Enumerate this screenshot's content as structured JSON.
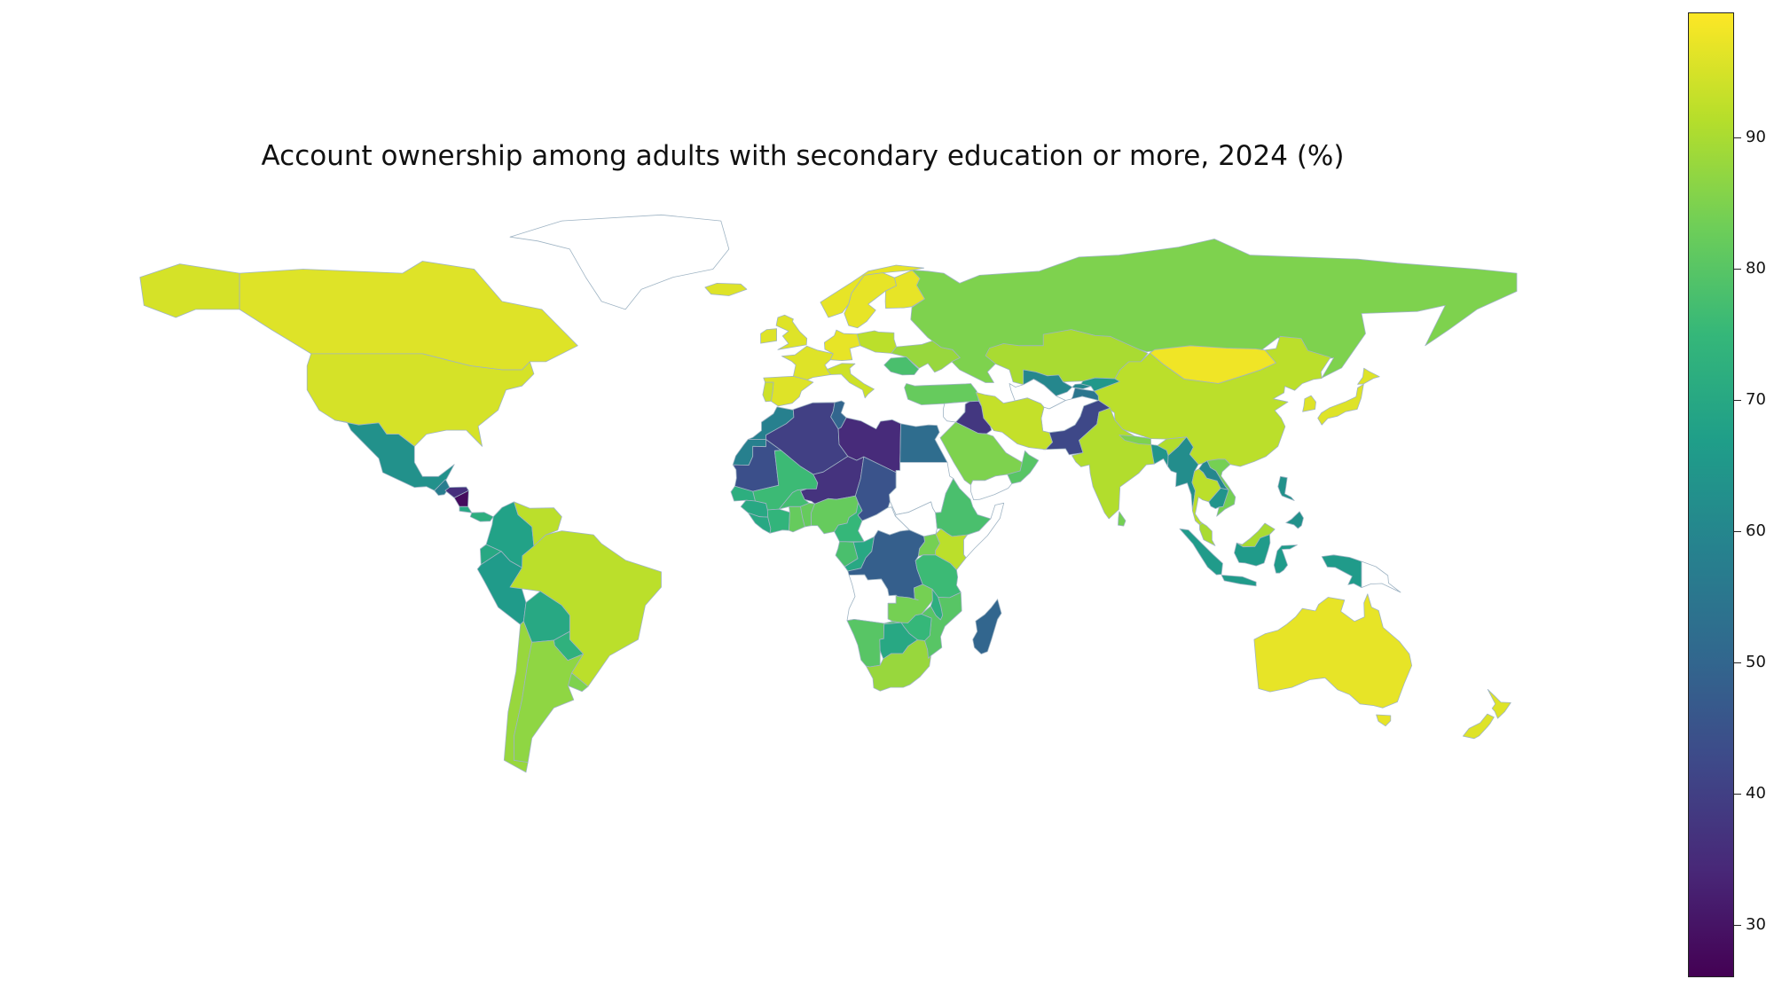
{
  "title": "Account ownership among adults with secondary education or more, 2024 (%)",
  "colorbar": {
    "min": 26,
    "max": 99.5,
    "ticks": [
      30,
      40,
      50,
      60,
      70,
      80,
      90
    ],
    "colors": [
      "#440154",
      "#482878",
      "#3e4989",
      "#31688e",
      "#26828e",
      "#1f9e89",
      "#35b779",
      "#6ece58",
      "#b5de2b",
      "#fde725"
    ]
  },
  "countries": [
    {
      "name": "Canada",
      "value": 96
    },
    {
      "name": "United States",
      "value": 95
    },
    {
      "name": "Greenland",
      "value": null
    },
    {
      "name": "Mexico",
      "value": 63
    },
    {
      "name": "Guatemala",
      "value": 57
    },
    {
      "name": "Honduras",
      "value": 36
    },
    {
      "name": "Nicaragua",
      "value": 28
    },
    {
      "name": "Costa Rica",
      "value": 70
    },
    {
      "name": "Panama",
      "value": 72
    },
    {
      "name": "Colombia",
      "value": 68
    },
    {
      "name": "Venezuela",
      "value": 92
    },
    {
      "name": "Ecuador",
      "value": 70
    },
    {
      "name": "Peru",
      "value": 66
    },
    {
      "name": "Brazil",
      "value": 92
    },
    {
      "name": "Bolivia",
      "value": 70
    },
    {
      "name": "Paraguay",
      "value": 73
    },
    {
      "name": "Chile",
      "value": 88
    },
    {
      "name": "Argentina",
      "value": 87
    },
    {
      "name": "Uruguay",
      "value": 85
    },
    {
      "name": "Iceland",
      "value": 96
    },
    {
      "name": "United Kingdom",
      "value": 96
    },
    {
      "name": "Ireland",
      "value": 96
    },
    {
      "name": "France",
      "value": 96
    },
    {
      "name": "Spain",
      "value": 96
    },
    {
      "name": "Portugal",
      "value": 94
    },
    {
      "name": "Germany",
      "value": 97
    },
    {
      "name": "Italy",
      "value": 94
    },
    {
      "name": "Norway",
      "value": 97
    },
    {
      "name": "Sweden",
      "value": 97
    },
    {
      "name": "Finland",
      "value": 97
    },
    {
      "name": "Poland",
      "value": 92
    },
    {
      "name": "Ukraine",
      "value": 88
    },
    {
      "name": "Romania",
      "value": 78
    },
    {
      "name": "Turkey",
      "value": 82
    },
    {
      "name": "Russia",
      "value": 85
    },
    {
      "name": "Kazakhstan",
      "value": 90
    },
    {
      "name": "Mongolia",
      "value": 98
    },
    {
      "name": "China",
      "value": 92
    },
    {
      "name": "Japan",
      "value": 96
    },
    {
      "name": "South Korea",
      "value": 96
    },
    {
      "name": "Uzbekistan",
      "value": 60
    },
    {
      "name": "Kyrgyzstan",
      "value": 65
    },
    {
      "name": "Tajikistan",
      "value": 55
    },
    {
      "name": "Turkmenistan",
      "value": null
    },
    {
      "name": "Afghanistan",
      "value": null
    },
    {
      "name": "Pakistan",
      "value": 42
    },
    {
      "name": "Iran",
      "value": 93
    },
    {
      "name": "Iraq",
      "value": 38
    },
    {
      "name": "Syria",
      "value": null
    },
    {
      "name": "Saudi Arabia",
      "value": 85
    },
    {
      "name": "Yemen",
      "value": null
    },
    {
      "name": "Oman",
      "value": 80
    },
    {
      "name": "India",
      "value": 91
    },
    {
      "name": "Nepal",
      "value": 85
    },
    {
      "name": "Bangladesh",
      "value": 64
    },
    {
      "name": "Myanmar",
      "value": 62
    },
    {
      "name": "Sri Lanka",
      "value": 84
    },
    {
      "name": "Thailand",
      "value": 92
    },
    {
      "name": "Vietnam",
      "value": 84
    },
    {
      "name": "Cambodia",
      "value": 64
    },
    {
      "name": "Laos",
      "value": 60
    },
    {
      "name": "Malaysia",
      "value": 90
    },
    {
      "name": "Indonesia",
      "value": 66
    },
    {
      "name": "Philippines",
      "value": 63
    },
    {
      "name": "Papua New Guinea",
      "value": null
    },
    {
      "name": "Australia",
      "value": 97
    },
    {
      "name": "New Zealand",
      "value": 96
    },
    {
      "name": "Morocco",
      "value": 58
    },
    {
      "name": "Algeria",
      "value": 40
    },
    {
      "name": "Libya",
      "value": 35
    },
    {
      "name": "Egypt",
      "value": 52
    },
    {
      "name": "Tunisia",
      "value": 50
    },
    {
      "name": "Mauritania",
      "value": 44
    },
    {
      "name": "Mali",
      "value": 76
    },
    {
      "name": "Niger",
      "value": 37
    },
    {
      "name": "Chad",
      "value": 45
    },
    {
      "name": "Sudan",
      "value": null
    },
    {
      "name": "Senegal",
      "value": 72
    },
    {
      "name": "Guinea",
      "value": 70
    },
    {
      "name": "Burkina Faso",
      "value": 77
    },
    {
      "name": "Ghana",
      "value": 82
    },
    {
      "name": "Cote d'Ivoire",
      "value": 74
    },
    {
      "name": "Nigeria",
      "value": 82
    },
    {
      "name": "Cameroon",
      "value": 75
    },
    {
      "name": "Central African Republic",
      "value": null
    },
    {
      "name": "Ethiopia",
      "value": 78
    },
    {
      "name": "South Sudan",
      "value": null
    },
    {
      "name": "Somalia",
      "value": null
    },
    {
      "name": "Kenya",
      "value": 92
    },
    {
      "name": "Uganda",
      "value": 84
    },
    {
      "name": "Gabon",
      "value": 78
    },
    {
      "name": "Congo",
      "value": 70
    },
    {
      "name": "DR Congo",
      "value": 48
    },
    {
      "name": "Tanzania",
      "value": 76
    },
    {
      "name": "Angola",
      "value": null
    },
    {
      "name": "Zambia",
      "value": 84
    },
    {
      "name": "Malawi",
      "value": 72
    },
    {
      "name": "Mozambique",
      "value": 80
    },
    {
      "name": "Madagascar",
      "value": 50
    },
    {
      "name": "Zimbabwe",
      "value": 75
    },
    {
      "name": "Namibia",
      "value": 80
    },
    {
      "name": "Botswana",
      "value": 70
    },
    {
      "name": "South Africa",
      "value": 88
    }
  ]
}
